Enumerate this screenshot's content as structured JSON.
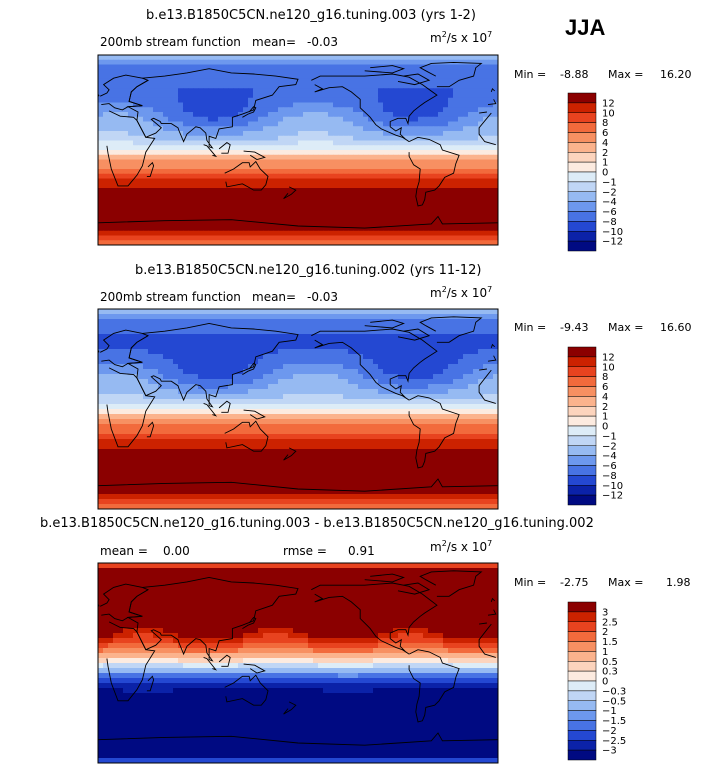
{
  "season": "JJA",
  "units_prefix": "m",
  "units_exp": "2",
  "units_mid": "/s x 10",
  "units_exp2": "7",
  "chart_data": [
    {
      "type": "heatmap",
      "title": "b.e13.B1850C5CN.ne120_g16.tuning.003 (yrs 1-2)",
      "subtitle_left": "200mb stream function",
      "mean_label": "mean=",
      "mean_value": "-0.03",
      "min_label": "Min =",
      "min_value": "-8.88",
      "max_label": "Max =",
      "max_value": "16.20",
      "levels": [
        "12",
        "10",
        "8",
        "6",
        "4",
        "2",
        "1",
        "0",
        "-1",
        "-2",
        "-4",
        "-6",
        "-8",
        "-10",
        "-12"
      ],
      "colors": [
        "#8b0000",
        "#cc2200",
        "#e8431f",
        "#f26a3c",
        "#f79062",
        "#fbb38d",
        "#fcd4bd",
        "#fcebe0",
        "#ddecf7",
        "#c0d6f5",
        "#96baf2",
        "#6d98ee",
        "#4873e4",
        "#2448d2",
        "#0b22a8",
        "#000a82"
      ],
      "field": {
        "nh_scale": -0.8,
        "sh_scale": 1.0,
        "anom": 0.0
      }
    },
    {
      "type": "heatmap",
      "title": "b.e13.B1850C5CN.ne120_g16.tuning.002 (yrs 11-12)",
      "subtitle_left": "200mb stream function",
      "mean_label": "mean=",
      "mean_value": "-0.03",
      "min_label": "Min =",
      "min_value": "-9.43",
      "max_label": "Max =",
      "max_value": "16.60",
      "levels": [
        "12",
        "10",
        "8",
        "6",
        "4",
        "2",
        "1",
        "0",
        "-1",
        "-2",
        "-4",
        "-6",
        "-8",
        "-10",
        "-12"
      ],
      "colors": [
        "#8b0000",
        "#cc2200",
        "#e8431f",
        "#f26a3c",
        "#f79062",
        "#fbb38d",
        "#fcd4bd",
        "#fcebe0",
        "#ddecf7",
        "#c0d6f5",
        "#96baf2",
        "#6d98ee",
        "#4873e4",
        "#2448d2",
        "#0b22a8",
        "#000a82"
      ],
      "field": {
        "nh_scale": -0.85,
        "sh_scale": 1.02,
        "anom": 0.0
      }
    },
    {
      "type": "heatmap",
      "title": "b.e13.B1850C5CN.ne120_g16.tuning.003 - b.e13.B1850C5CN.ne120_g16.tuning.002",
      "mean_label": "mean =",
      "mean_value": "0.00",
      "rmse_label": "rmse =",
      "rmse_value": "0.91",
      "min_label": "Min =",
      "min_value": "-2.75",
      "max_label": "Max =",
      "max_value": "1.98",
      "levels": [
        "3",
        "2.5",
        "2",
        "1.5",
        "1",
        "0.5",
        "0.3",
        "0",
        "-0.3",
        "-0.5",
        "-1",
        "-1.5",
        "-2",
        "-2.5",
        "-3"
      ],
      "colors": [
        "#8b0000",
        "#cc2200",
        "#e8431f",
        "#f26a3c",
        "#f79062",
        "#fbb38d",
        "#fcd4bd",
        "#fcebe0",
        "#ddecf7",
        "#c0d6f5",
        "#96baf2",
        "#6d98ee",
        "#4873e4",
        "#2448d2",
        "#0b22a8",
        "#000a82"
      ],
      "field": {
        "nh_scale": 0.5,
        "sh_scale": -0.35,
        "anom": 1.0
      }
    }
  ]
}
